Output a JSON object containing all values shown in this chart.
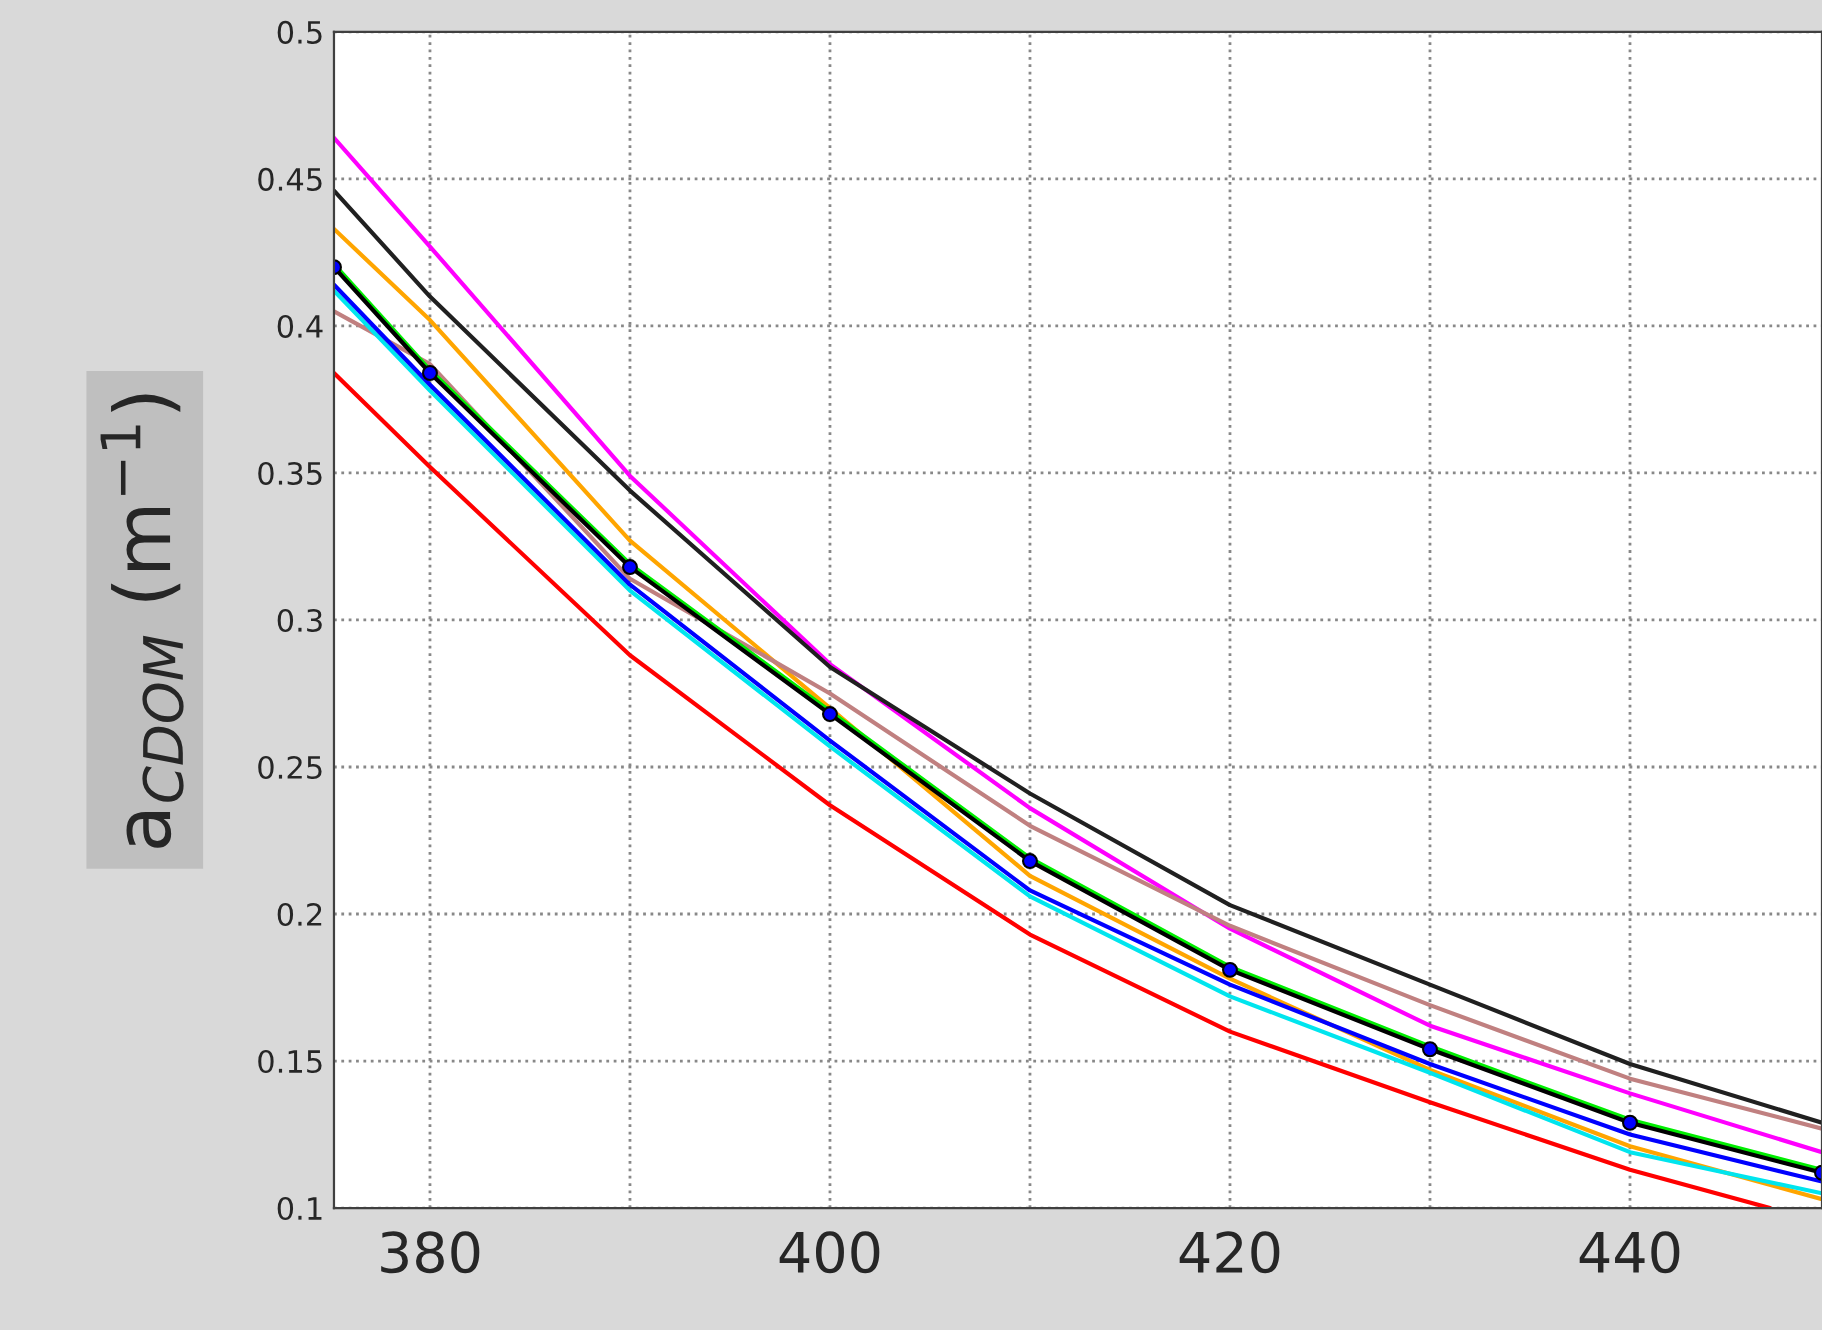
{
  "chart_data": {
    "type": "line",
    "ylabel": "a$_{CDOM}$ (m$^{−1}$)",
    "xlim": [
      375.2,
      449.6
    ],
    "ylim": [
      0.1,
      0.5
    ],
    "xticks": [
      380,
      {
        "value": 390,
        "label": null
      },
      400,
      {
        "value": 410,
        "label": null
      },
      420,
      {
        "value": 430,
        "label": null
      },
      440
    ],
    "yticks": [
      0.1,
      0.15,
      0.2,
      0.25,
      0.3,
      0.35,
      0.4,
      0.45,
      0.5
    ],
    "grid": true,
    "line_style": "solid",
    "x": [
      375.2,
      380,
      390,
      400,
      410,
      420,
      430,
      440,
      449.6
    ],
    "series": [
      {
        "color": "#ff00ff",
        "values": [
          0.464,
          0.427,
          0.349,
          0.285,
          0.236,
          0.195,
          0.162,
          0.139,
          0.119
        ]
      },
      {
        "color": "#202020",
        "values": [
          0.446,
          0.41,
          0.344,
          0.284,
          0.241,
          0.203,
          0.176,
          0.149,
          0.129
        ]
      },
      {
        "color": "#ffa500",
        "values": [
          0.433,
          0.402,
          0.327,
          0.27,
          0.213,
          0.178,
          0.147,
          0.121,
          0.103
        ]
      },
      {
        "color": "#c08080",
        "values": [
          0.405,
          0.387,
          0.314,
          0.275,
          0.23,
          0.196,
          0.169,
          0.144,
          0.127
        ]
      },
      {
        "color": "#00ee00",
        "values": [
          0.421,
          0.385,
          0.319,
          0.269,
          0.219,
          0.182,
          0.155,
          0.13,
          0.113
        ]
      },
      {
        "color": "#00e5ee",
        "values": [
          0.412,
          0.378,
          0.31,
          0.257,
          0.206,
          0.172,
          0.146,
          0.119,
          0.105
        ]
      },
      {
        "color": "#0000ff",
        "values": [
          0.414,
          0.38,
          0.312,
          0.259,
          0.208,
          0.176,
          0.149,
          0.125,
          0.109
        ]
      },
      {
        "color": "#ff0000",
        "x": [
          375.2,
          380,
          390,
          400,
          410,
          420,
          430,
          440,
          447
        ],
        "values": [
          0.384,
          0.352,
          0.288,
          0.237,
          0.193,
          0.16,
          0.136,
          0.113,
          0.1
        ]
      },
      {
        "color": "#000000",
        "marker": "circle",
        "values": [
          0.42,
          0.384,
          0.318,
          0.268,
          0.218,
          0.181,
          0.154,
          0.129,
          0.112
        ]
      }
    ]
  }
}
